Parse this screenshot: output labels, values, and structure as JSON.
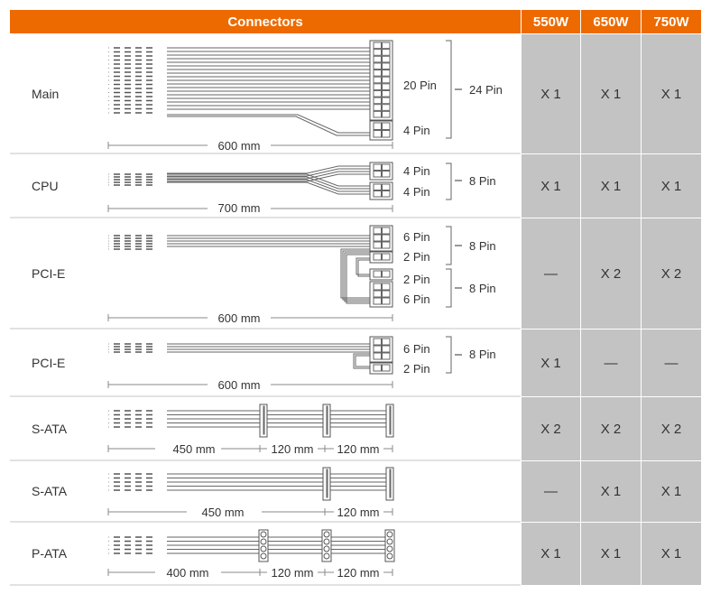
{
  "header": {
    "connectors": "Connectors",
    "models": [
      "550W",
      "650W",
      "750W"
    ]
  },
  "rows": [
    {
      "name": "Main",
      "pins": [
        "20 Pin",
        "4 Pin"
      ],
      "groups": [
        "24 Pin"
      ],
      "lengths": [
        "600 mm"
      ],
      "values": [
        "X 1",
        "X 1",
        "X 1"
      ]
    },
    {
      "name": "CPU",
      "pins": [
        "4 Pin",
        "4 Pin"
      ],
      "groups": [
        "8 Pin"
      ],
      "lengths": [
        "700 mm"
      ],
      "values": [
        "X 1",
        "X 1",
        "X 1"
      ]
    },
    {
      "name": "PCI-E",
      "pins": [
        "6 Pin",
        "2 Pin",
        "2 Pin",
        "6 Pin"
      ],
      "groups": [
        "8 Pin",
        "8 Pin"
      ],
      "lengths": [
        "600 mm"
      ],
      "values": [
        "—",
        "X 2",
        "X 2"
      ]
    },
    {
      "name": "PCI-E",
      "pins": [
        "6 Pin",
        "2 Pin"
      ],
      "groups": [
        "8 Pin"
      ],
      "lengths": [
        "600 mm"
      ],
      "values": [
        "X 1",
        "—",
        "—"
      ]
    },
    {
      "name": "S-ATA",
      "pins": [],
      "groups": [],
      "lengths": [
        "450 mm",
        "120 mm",
        "120 mm"
      ],
      "values": [
        "X 2",
        "X 2",
        "X 2"
      ]
    },
    {
      "name": "S-ATA",
      "pins": [],
      "groups": [],
      "lengths": [
        "450 mm",
        "120 mm"
      ],
      "values": [
        "—",
        "X 1",
        "X 1"
      ]
    },
    {
      "name": "P-ATA",
      "pins": [],
      "groups": [],
      "lengths": [
        "400 mm",
        "120 mm",
        "120 mm"
      ],
      "values": [
        "X 1",
        "X 1",
        "X 1"
      ]
    }
  ],
  "colors": {
    "header": "#ED6A00",
    "model_cells": "#C3C3C3"
  }
}
